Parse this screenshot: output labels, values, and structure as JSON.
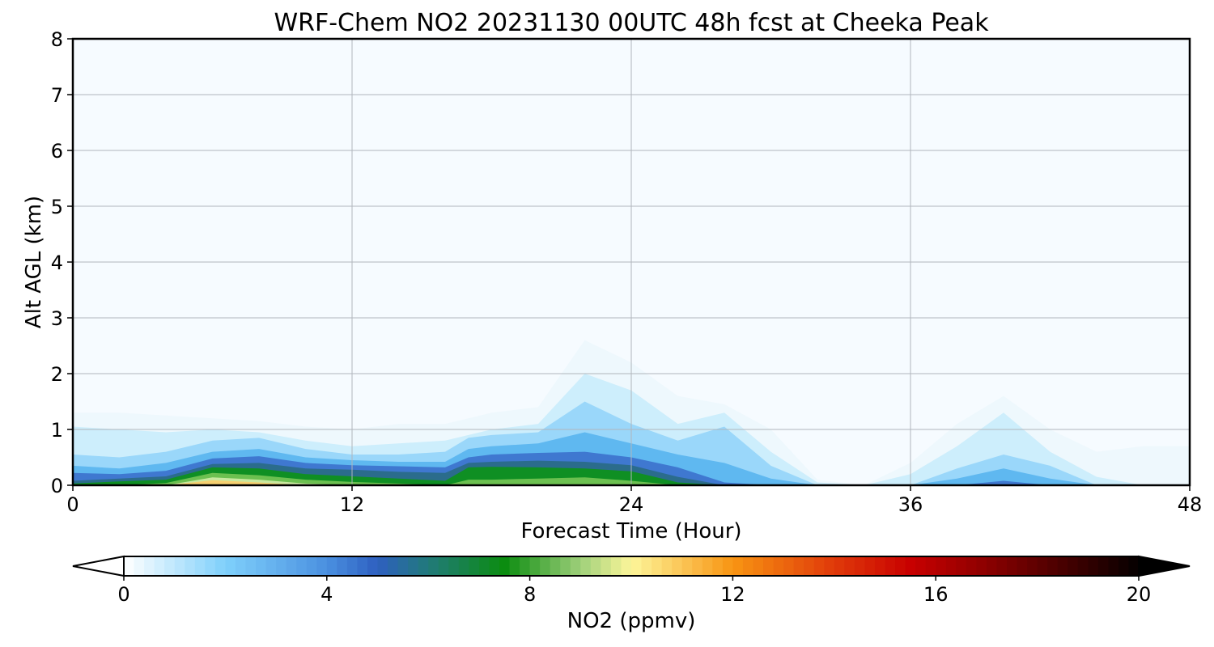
{
  "chart_data": {
    "type": "heatmap",
    "title": "WRF-Chem NO2  20231130 00UTC 48h fcst at Cheeka Peak",
    "xlabel": "Forecast Time (Hour)",
    "ylabel": "Alt AGL (km)",
    "xlim": [
      0,
      48
    ],
    "ylim": [
      0,
      8
    ],
    "xticks": [
      "0",
      "12",
      "24",
      "36",
      "48"
    ],
    "yticks": [
      "0",
      "1",
      "2",
      "3",
      "4",
      "5",
      "6",
      "7",
      "8"
    ],
    "grid": true,
    "field_x_hours": [
      0,
      2,
      4,
      6,
      8,
      10,
      12,
      14,
      16,
      17,
      18,
      20,
      22,
      24,
      26,
      28,
      30,
      32,
      34,
      36,
      38,
      40,
      42,
      44,
      46,
      48
    ],
    "field_layers": [
      {
        "level": 0.3,
        "color": "#eef8fd",
        "tops": [
          1.3,
          1.3,
          1.25,
          1.2,
          1.15,
          1.05,
          1.0,
          1.1,
          1.1,
          1.2,
          1.3,
          1.4,
          2.6,
          2.2,
          1.6,
          1.45,
          1.0,
          0.1,
          0.0,
          0.4,
          1.1,
          1.6,
          1.0,
          0.6,
          0.7,
          0.7
        ]
      },
      {
        "level": 1.0,
        "color": "#cdeefc",
        "tops": [
          1.05,
          1.0,
          0.95,
          1.0,
          0.95,
          0.8,
          0.7,
          0.75,
          0.8,
          0.9,
          1.0,
          1.1,
          2.0,
          1.7,
          1.1,
          1.3,
          0.6,
          0.05,
          0.0,
          0.2,
          0.7,
          1.3,
          0.6,
          0.15,
          0.0,
          0.0
        ]
      },
      {
        "level": 2.0,
        "color": "#9ad7fa",
        "tops": [
          0.55,
          0.5,
          0.6,
          0.8,
          0.85,
          0.65,
          0.55,
          0.55,
          0.6,
          0.85,
          0.9,
          0.95,
          1.5,
          1.1,
          0.8,
          1.05,
          0.35,
          0.0,
          0.0,
          0.0,
          0.3,
          0.55,
          0.35,
          0.0,
          0.0,
          0.0
        ]
      },
      {
        "level": 3.0,
        "color": "#5fb8f0",
        "tops": [
          0.35,
          0.3,
          0.4,
          0.6,
          0.65,
          0.5,
          0.45,
          0.42,
          0.42,
          0.65,
          0.7,
          0.75,
          0.95,
          0.75,
          0.55,
          0.4,
          0.12,
          0.0,
          0.0,
          0.0,
          0.12,
          0.3,
          0.12,
          0.0,
          0.0,
          0.0
        ]
      },
      {
        "level": 4.5,
        "color": "#3f78d0",
        "tops": [
          0.22,
          0.2,
          0.26,
          0.48,
          0.52,
          0.4,
          0.36,
          0.34,
          0.32,
          0.5,
          0.55,
          0.58,
          0.6,
          0.5,
          0.32,
          0.05,
          0.0,
          0.0,
          0.0,
          0.0,
          0.0,
          0.08,
          0.0,
          0.0,
          0.0,
          0.0
        ]
      },
      {
        "level": 6.0,
        "color": "#2b6c8c",
        "tops": [
          0.08,
          0.12,
          0.16,
          0.38,
          0.4,
          0.3,
          0.28,
          0.24,
          0.22,
          0.4,
          0.42,
          0.44,
          0.42,
          0.36,
          0.15,
          0.0,
          0.0,
          0.0,
          0.0,
          0.0,
          0.0,
          0.0,
          0.0,
          0.0,
          0.0,
          0.0
        ]
      },
      {
        "level": 7.0,
        "color": "#0f8f23",
        "tops": [
          0.03,
          0.07,
          0.1,
          0.32,
          0.3,
          0.2,
          0.16,
          0.12,
          0.08,
          0.32,
          0.33,
          0.32,
          0.3,
          0.25,
          0.05,
          0.0,
          0.0,
          0.0,
          0.0,
          0.0,
          0.0,
          0.0,
          0.0,
          0.0,
          0.0,
          0.0
        ]
      },
      {
        "level": 8.5,
        "color": "#6cc050",
        "tops": [
          0.0,
          0.0,
          0.04,
          0.22,
          0.18,
          0.1,
          0.06,
          0.03,
          0.0,
          0.1,
          0.1,
          0.12,
          0.14,
          0.08,
          0.0,
          0.0,
          0.0,
          0.0,
          0.0,
          0.0,
          0.0,
          0.0,
          0.0,
          0.0,
          0.0,
          0.0
        ]
      },
      {
        "level": 9.5,
        "color": "#c8e8a0",
        "tops": [
          0.0,
          0.0,
          0.0,
          0.14,
          0.1,
          0.03,
          0.0,
          0.0,
          0.0,
          0.0,
          0.0,
          0.0,
          0.0,
          0.0,
          0.0,
          0.0,
          0.0,
          0.0,
          0.0,
          0.0,
          0.0,
          0.0,
          0.0,
          0.0,
          0.0,
          0.0
        ]
      },
      {
        "level": 11.0,
        "color": "#f6d070",
        "tops": [
          0.0,
          0.0,
          0.0,
          0.09,
          0.05,
          0.0,
          0.0,
          0.0,
          0.0,
          0.0,
          0.0,
          0.0,
          0.0,
          0.0,
          0.0,
          0.0,
          0.0,
          0.0,
          0.0,
          0.0,
          0.0,
          0.0,
          0.0,
          0.0,
          0.0,
          0.0
        ]
      }
    ],
    "colorbar": {
      "label": "NO2  (ppmv)",
      "min": 0,
      "max": 20,
      "ticks": [
        "0",
        "4",
        "8",
        "12",
        "16",
        "20"
      ],
      "extend": "both",
      "background_color": "#f6fbff",
      "stops": [
        {
          "value": 0,
          "color": "#ffffff"
        },
        {
          "value": 2,
          "color": "#7fd0fb"
        },
        {
          "value": 4,
          "color": "#4a90e0"
        },
        {
          "value": 5,
          "color": "#2e5fc0"
        },
        {
          "value": 6,
          "color": "#217a7a"
        },
        {
          "value": 7.5,
          "color": "#0b8c10"
        },
        {
          "value": 9,
          "color": "#9fd07a"
        },
        {
          "value": 10,
          "color": "#fdf69a"
        },
        {
          "value": 12,
          "color": "#f89412"
        },
        {
          "value": 14,
          "color": "#e03a0a"
        },
        {
          "value": 15.5,
          "color": "#c80000"
        },
        {
          "value": 17,
          "color": "#8c0000"
        },
        {
          "value": 20,
          "color": "#050000"
        }
      ]
    }
  }
}
